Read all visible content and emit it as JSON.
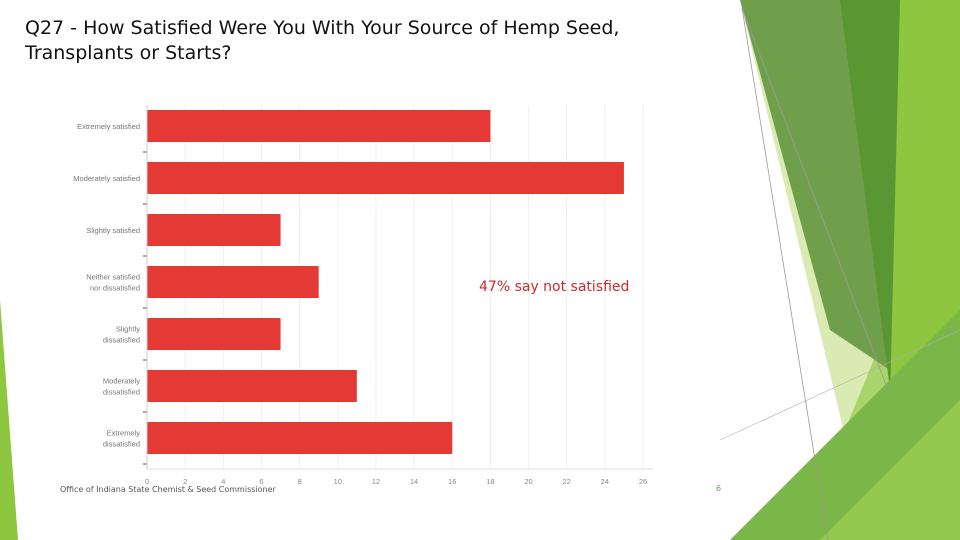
{
  "slide": {
    "title": "Q27 - How Satisfied Were You With Your Source of Hemp Seed,\nTransplants or Starts?",
    "footer": "Office of Indiana State Chemist & Seed Commissioner",
    "page_number": "6"
  },
  "theme": {
    "bar_color": "#e53935",
    "accent_green_dark": "#5b9a32",
    "accent_green": "#8dc63f",
    "accent_green_light": "#d9ebb3"
  },
  "chart_data": {
    "type": "bar",
    "orientation": "horizontal",
    "categories": [
      [
        "Extremely satisfied"
      ],
      [
        "Moderately satisfied"
      ],
      [
        "Slightly satisfied"
      ],
      [
        "Neither satisfied",
        "nor dissatisfied"
      ],
      [
        "Slightly",
        "dissatisfied"
      ],
      [
        "Moderately",
        "dissatisfied"
      ],
      [
        "Extremely",
        "dissatisfied"
      ]
    ],
    "values": [
      18,
      25,
      7,
      9,
      7,
      11,
      16
    ],
    "xlim": [
      0,
      26
    ],
    "x_ticks": [
      0,
      2,
      4,
      6,
      8,
      10,
      12,
      14,
      16,
      18,
      20,
      22,
      24,
      26
    ],
    "x_grid": true,
    "annotation": "47% say not satisfied"
  }
}
